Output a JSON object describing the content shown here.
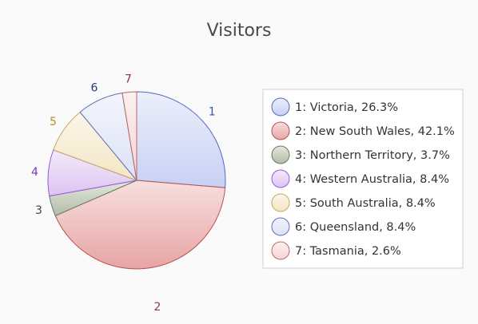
{
  "chart_data": {
    "type": "pie",
    "title": "Visitors",
    "legend_position": "right",
    "slices": [
      {
        "index": "1",
        "name": "Victoria",
        "value": 26.3,
        "legend_label": "1: Victoria, 26.3%",
        "color": "#c8d0f4",
        "stroke": "#5468c4",
        "label_color": "#3a4fb0"
      },
      {
        "index": "2",
        "name": "New South Wales",
        "value": 42.1,
        "legend_label": "2: New South Wales, 42.1%",
        "color": "#e8a4a4",
        "stroke": "#b85050",
        "label_color": "#8c3a3a"
      },
      {
        "index": "3",
        "name": "Northern Territory",
        "value": 3.7,
        "legend_label": "3: Northern Territory, 3.7%",
        "color": "#b2bca8",
        "stroke": "#6a7a60",
        "label_color": "#3a4a30"
      },
      {
        "index": "4",
        "name": "Western Australia",
        "value": 8.4,
        "legend_label": "4: Western Australia, 8.4%",
        "color": "#dcc4f2",
        "stroke": "#9a5ad0",
        "label_color": "#7a38b8"
      },
      {
        "index": "5",
        "name": "South Australia",
        "value": 8.4,
        "legend_label": "5: South Australia, 8.4%",
        "color": "#f4e6c4",
        "stroke": "#c8a460",
        "label_color": "#b8901a"
      },
      {
        "index": "6",
        "name": "Queensland",
        "value": 8.4,
        "legend_label": "6: Queensland, 8.4%",
        "color": "#dce2f6",
        "stroke": "#6070b8",
        "label_color": "#283878"
      },
      {
        "index": "7",
        "name": "Tasmania",
        "value": 2.6,
        "legend_label": "7: Tasmania, 2.6%",
        "color": "#f6d4d4",
        "stroke": "#b86868",
        "label_color": "#8c3a3a"
      }
    ]
  }
}
